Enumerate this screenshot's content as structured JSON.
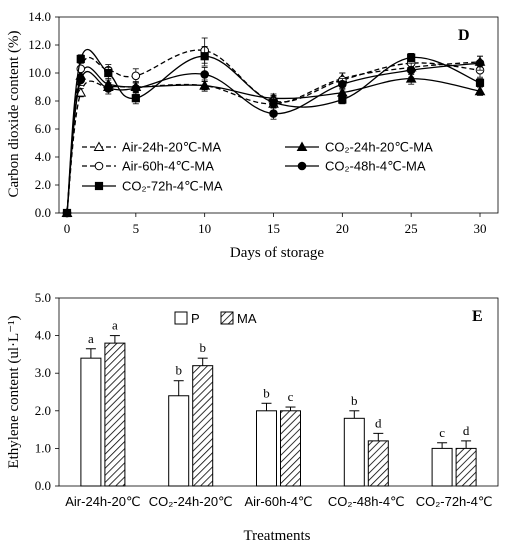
{
  "chart_data": [
    {
      "panel": "D",
      "type": "line",
      "ylabel": "Carbon dioxide content (%)",
      "xlabel": "Days of storage",
      "ylim": [
        0,
        14
      ],
      "yticks": [
        "0.0",
        "2.0",
        "4.0",
        "6.0",
        "8.0",
        "10.0",
        "12.0",
        "14.0"
      ],
      "xlim": [
        0,
        31
      ],
      "xticks": [
        "0",
        "5",
        "10",
        "15",
        "20",
        "25",
        "30"
      ],
      "x": [
        0,
        1,
        3,
        5,
        10,
        15,
        20,
        25,
        30
      ],
      "legend_placement": "lower-center",
      "series": [
        {
          "name": "Air-24h-20℃-MA",
          "color": "#000000",
          "dash": "dashed",
          "marker": "triangle-open",
          "values": [
            0.0,
            8.6,
            9.0,
            9.0,
            9.1,
            7.8,
            9.6,
            10.4,
            10.8
          ],
          "errors": [
            0,
            0.3,
            0.3,
            0.4,
            0.4,
            0.3,
            0.4,
            0.5,
            0.4
          ]
        },
        {
          "name": "CO₂-24h-20℃-MA",
          "color": "#000000",
          "dash": "solid",
          "marker": "triangle-filled",
          "values": [
            0.0,
            9.8,
            9.2,
            9.0,
            9.1,
            8.2,
            8.6,
            9.6,
            8.7
          ],
          "errors": [
            0,
            0.3,
            0.3,
            0.3,
            0.3,
            0.3,
            0.3,
            0.4,
            0.3
          ]
        },
        {
          "name": "Air-60h-4℃-MA",
          "color": "#000000",
          "dash": "dashed",
          "marker": "circle-open",
          "values": [
            0.0,
            10.3,
            10.2,
            9.8,
            11.6,
            8.0,
            9.5,
            10.7,
            10.2
          ],
          "errors": [
            0,
            0.4,
            0.4,
            0.5,
            0.9,
            0.4,
            0.5,
            0.5,
            0.5
          ]
        },
        {
          "name": "CO₂-48h-4℃-MA",
          "color": "#000000",
          "dash": "solid",
          "marker": "circle-filled",
          "values": [
            0.0,
            9.5,
            8.9,
            8.9,
            9.9,
            7.1,
            9.2,
            10.2,
            10.7
          ],
          "errors": [
            0,
            0.4,
            0.4,
            0.4,
            0.5,
            0.4,
            0.4,
            0.5,
            0.5
          ]
        },
        {
          "name": "CO₂-72h-4℃-MA",
          "color": "#000000",
          "dash": "solid",
          "marker": "square-filled",
          "values": [
            0.0,
            11.0,
            10.0,
            8.2,
            11.2,
            7.9,
            8.1,
            11.1,
            9.3
          ],
          "errors": [
            0,
            0.3,
            0.4,
            0.4,
            0.7,
            0.4,
            0.3,
            0.3,
            0.3
          ]
        }
      ]
    },
    {
      "panel": "E",
      "type": "bar",
      "ylabel": "Ethylene content (ul·L⁻¹)",
      "xlabel": "Treatments",
      "ylim": [
        0,
        5
      ],
      "yticks": [
        "0.0",
        "1.0",
        "2.0",
        "3.0",
        "4.0",
        "5.0"
      ],
      "categories": [
        "Air-24h-20℃",
        "CO₂-24h-20℃",
        "Air-60h-4℃",
        "CO₂-48h-4℃",
        "CO₂-72h-4℃"
      ],
      "legend_placement": "top-center",
      "series": [
        {
          "name": "P",
          "fill": "open",
          "values": [
            3.4,
            2.4,
            2.0,
            1.8,
            1.0
          ],
          "errors": [
            0.25,
            0.4,
            0.2,
            0.2,
            0.15
          ],
          "labels": [
            "a",
            "b",
            "b",
            "b",
            "c"
          ]
        },
        {
          "name": "MA",
          "fill": "hatched",
          "values": [
            3.8,
            3.2,
            2.0,
            1.2,
            1.0
          ],
          "errors": [
            0.2,
            0.2,
            0.1,
            0.2,
            0.2
          ],
          "labels": [
            "a",
            "b",
            "c",
            "d",
            "d"
          ]
        }
      ]
    }
  ]
}
